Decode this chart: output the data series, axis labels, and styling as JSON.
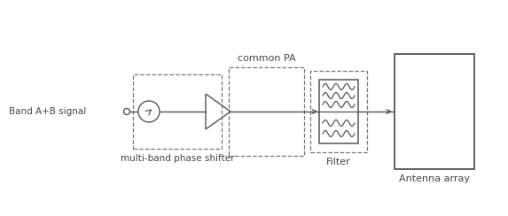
{
  "bg_color": "#ffffff",
  "line_color": "#555555",
  "dashed_color": "#777777",
  "text_color": "#444444",
  "label_band": "Band A+B signal",
  "label_phase_shifter": "multi-band phase shifter",
  "label_common_pa": "common PA",
  "label_filter": "Filter",
  "label_antenna": "Antenna array",
  "fig_width": 5.73,
  "fig_height": 2.44,
  "dpi": 100
}
